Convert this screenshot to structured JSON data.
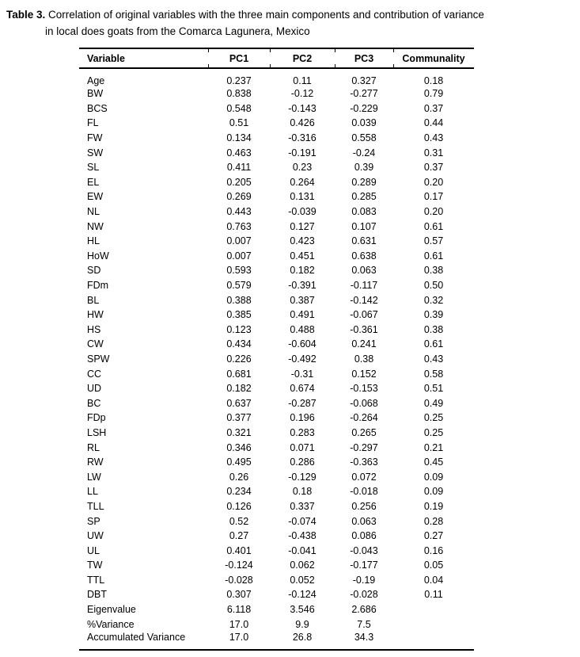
{
  "caption": {
    "label": "Table 3.",
    "line1": "Correlation of original variables with the three main components and contribution of variance",
    "line2": "in local does goats from the Comarca Lagunera, Mexico"
  },
  "table": {
    "columns": [
      "Variable",
      "PC1",
      "PC2",
      "PC3",
      "Communality"
    ],
    "rows": [
      [
        "Age",
        "0.237",
        "0.11",
        "0.327",
        "0.18"
      ],
      [
        "BW",
        "0.838",
        "-0.12",
        "-0.277",
        "0.79"
      ],
      [
        "BCS",
        "0.548",
        "-0.143",
        "-0.229",
        "0.37"
      ],
      [
        "FL",
        "0.51",
        "0.426",
        "0.039",
        "0.44"
      ],
      [
        "FW",
        "0.134",
        "-0.316",
        "0.558",
        "0.43"
      ],
      [
        "SW",
        "0.463",
        "-0.191",
        "-0.24",
        "0.31"
      ],
      [
        "SL",
        "0.411",
        "0.23",
        "0.39",
        "0.37"
      ],
      [
        "EL",
        "0.205",
        "0.264",
        "0.289",
        "0.20"
      ],
      [
        "EW",
        "0.269",
        "0.131",
        "0.285",
        "0.17"
      ],
      [
        "NL",
        "0.443",
        "-0.039",
        "0.083",
        "0.20"
      ],
      [
        "NW",
        "0.763",
        "0.127",
        "0.107",
        "0.61"
      ],
      [
        "HL",
        "0.007",
        "0.423",
        "0.631",
        "0.57"
      ],
      [
        "HoW",
        "0.007",
        "0.451",
        "0.638",
        "0.61"
      ],
      [
        "SD",
        "0.593",
        "0.182",
        "0.063",
        "0.38"
      ],
      [
        "FDm",
        "0.579",
        "-0.391",
        "-0.117",
        "0.50"
      ],
      [
        "BL",
        "0.388",
        "0.387",
        "-0.142",
        "0.32"
      ],
      [
        "HW",
        "0.385",
        "0.491",
        "-0.067",
        "0.39"
      ],
      [
        "HS",
        "0.123",
        "0.488",
        "-0.361",
        "0.38"
      ],
      [
        "CW",
        "0.434",
        "-0.604",
        "0.241",
        "0.61"
      ],
      [
        "SPW",
        "0.226",
        "-0.492",
        "0.38",
        "0.43"
      ],
      [
        "CC",
        "0.681",
        "-0.31",
        "0.152",
        "0.58"
      ],
      [
        "UD",
        "0.182",
        "0.674",
        "-0.153",
        "0.51"
      ],
      [
        "BC",
        "0.637",
        "-0.287",
        "-0.068",
        "0.49"
      ],
      [
        "FDp",
        "0.377",
        "0.196",
        "-0.264",
        "0.25"
      ],
      [
        "LSH",
        "0.321",
        "0.283",
        "0.265",
        "0.25"
      ],
      [
        "RL",
        "0.346",
        "0.071",
        "-0.297",
        "0.21"
      ],
      [
        "RW",
        "0.495",
        "0.286",
        "-0.363",
        "0.45"
      ],
      [
        "LW",
        "0.26",
        "-0.129",
        "0.072",
        "0.09"
      ],
      [
        "LL",
        "0.234",
        "0.18",
        "-0.018",
        "0.09"
      ],
      [
        "TLL",
        "0.126",
        "0.337",
        "0.256",
        "0.19"
      ],
      [
        "SP",
        "0.52",
        "-0.074",
        "0.063",
        "0.28"
      ],
      [
        "UW",
        "0.27",
        "-0.438",
        "0.086",
        "0.27"
      ],
      [
        "UL",
        "0.401",
        "-0.041",
        "-0.043",
        "0.16"
      ],
      [
        "TW",
        "-0.124",
        "0.062",
        "-0.177",
        "0.05"
      ],
      [
        "TTL",
        "-0.028",
        "0.052",
        "-0.19",
        "0.04"
      ],
      [
        "DBT",
        "0.307",
        "-0.124",
        "-0.028",
        "0.11"
      ]
    ],
    "summary_rows": [
      [
        "Eigenvalue",
        "6.118",
        "3.546",
        "2.686",
        ""
      ],
      [
        "%Variance",
        "17.0",
        "9.9",
        "7.5",
        ""
      ],
      [
        "Accumulated Variance",
        "17.0",
        "26.8",
        "34.3",
        ""
      ]
    ]
  },
  "colors": {
    "text": "#000000",
    "background": "#ffffff",
    "rule": "#000000"
  }
}
